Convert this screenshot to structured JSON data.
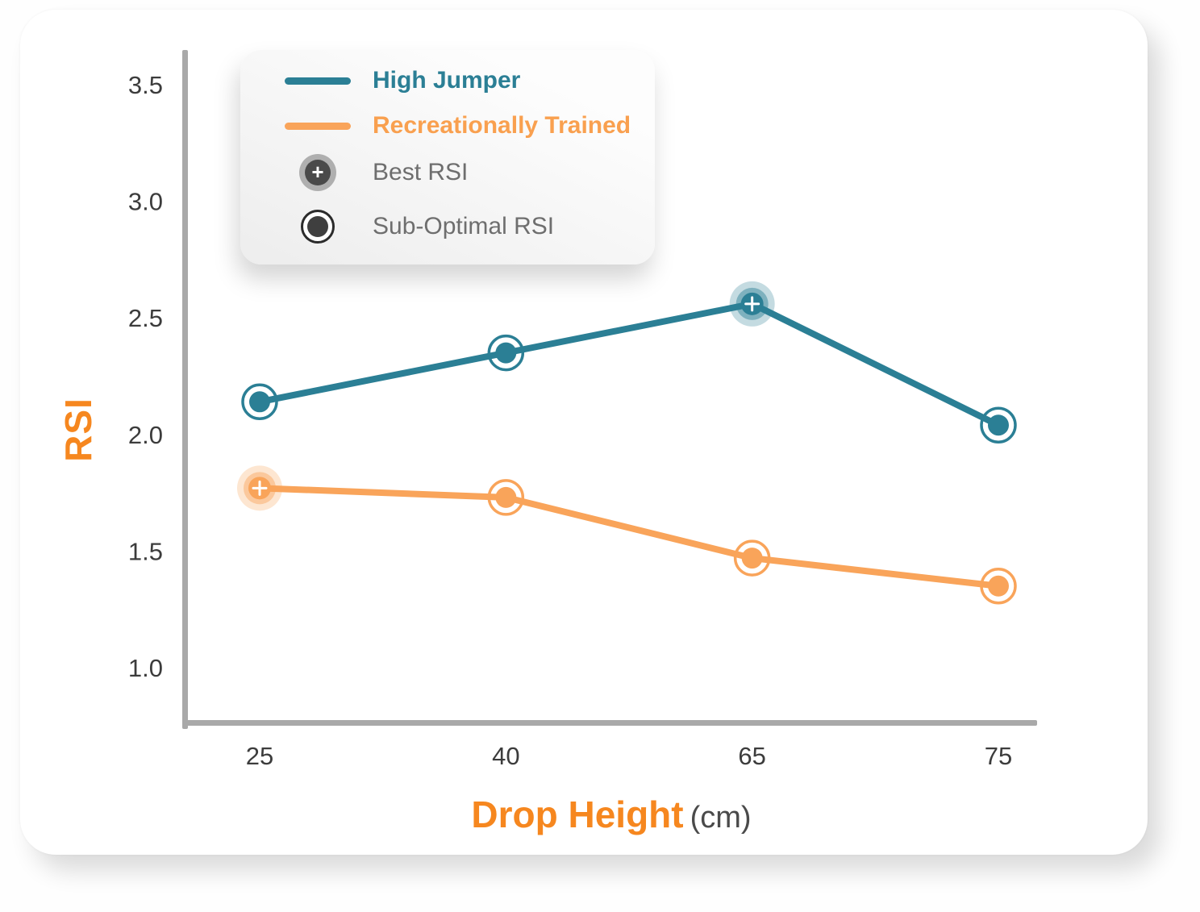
{
  "axes": {
    "y_label": "RSI",
    "x_label": "Drop Height",
    "x_label_unit": "(cm)"
  },
  "legend": {
    "items": [
      {
        "type": "line-swatch",
        "label": "High Jumper",
        "color": "#2B7F95"
      },
      {
        "type": "line-swatch",
        "label": "Recreationally Trained",
        "color": "#F9A45A"
      },
      {
        "type": "best-marker",
        "label": "Best RSI"
      },
      {
        "type": "suboptimal-marker",
        "label": "Sub-Optimal RSI"
      }
    ]
  },
  "colors": {
    "teal_series": "#2B7F95",
    "orange_series": "#F9A45A",
    "axis_line": "#A9A9A9",
    "tick_text": "#3C3C3C",
    "title_orange": "#F6871F",
    "legend_gray_text": "#6E6E6E"
  },
  "chart_data": {
    "type": "line",
    "categories": [
      25,
      40,
      65,
      75
    ],
    "x_tick_labels": [
      "25",
      "40",
      "65",
      "75"
    ],
    "y_ticks": [
      3.5,
      3.0,
      2.5,
      2.0,
      1.5,
      1.0
    ],
    "ylim": [
      0.75,
      3.65
    ],
    "xlabel": "Drop Height (cm)",
    "ylabel": "RSI",
    "grid": false,
    "legend_position": "top-left",
    "series": [
      {
        "name": "High Jumper",
        "color": "#2B7F95",
        "values": [
          2.14,
          2.35,
          2.56,
          2.04
        ],
        "best_index": 2,
        "marker_notes": "best point shown with halo and plus sign; others with ring outline"
      },
      {
        "name": "Recreationally Trained",
        "color": "#F9A45A",
        "values": [
          1.77,
          1.73,
          1.47,
          1.35
        ],
        "best_index": 0,
        "marker_notes": "best point shown with halo and plus sign; others with ring outline"
      }
    ],
    "marker_legend": {
      "best": "Best RSI",
      "suboptimal": "Sub-Optimal RSI"
    }
  }
}
